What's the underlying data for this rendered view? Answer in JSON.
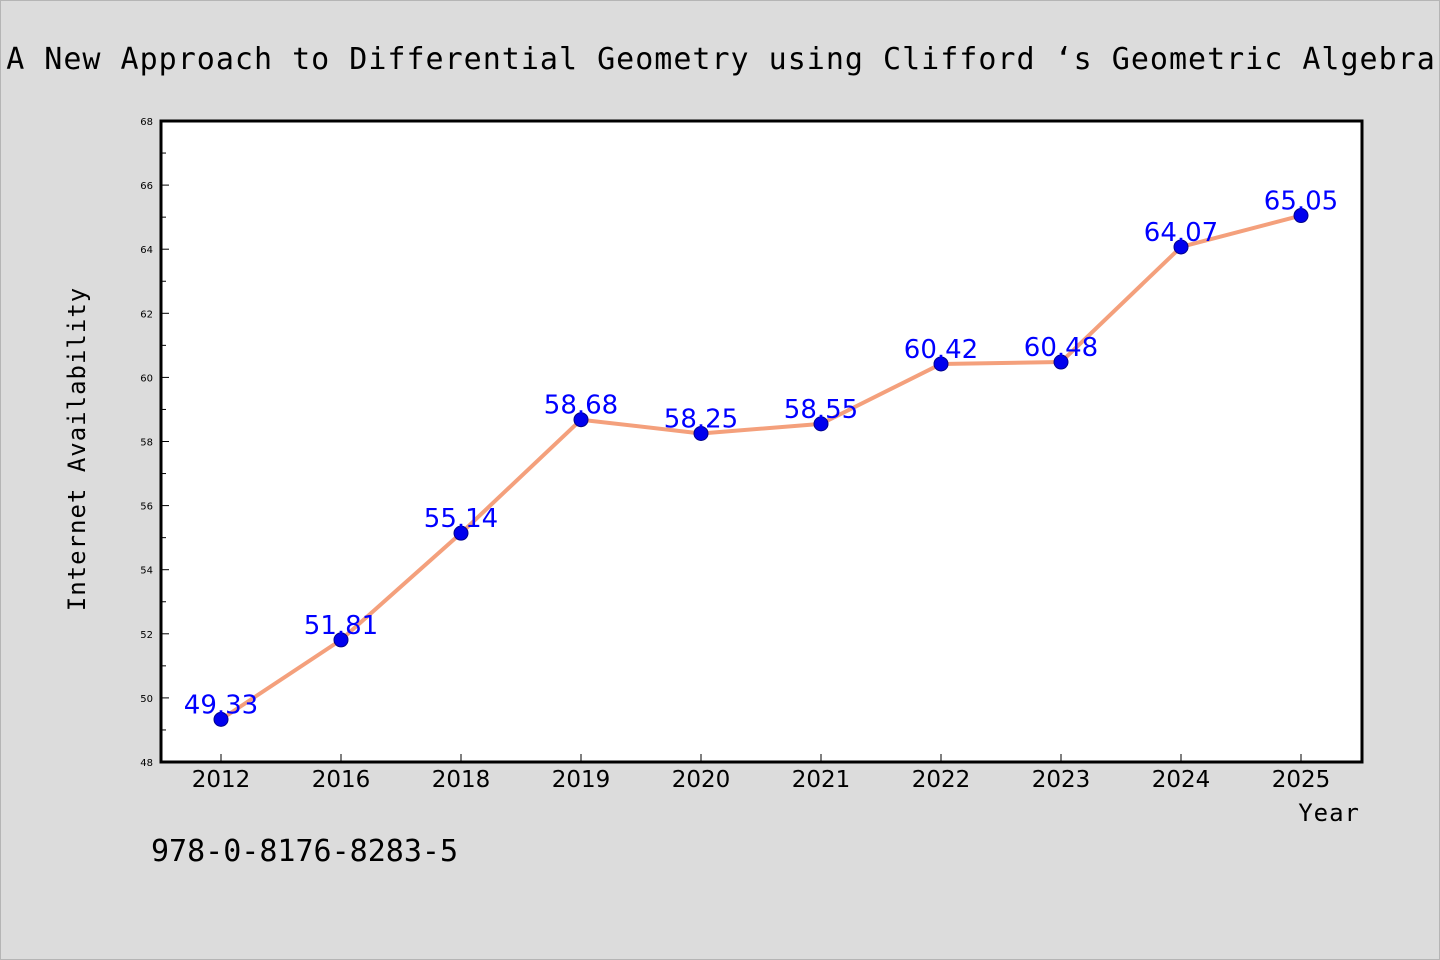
{
  "chart_data": {
    "type": "line",
    "title": "A New Approach to Differential Geometry using Clifford ‘s Geometric Algebra",
    "xlabel": "Year",
    "ylabel": "Internet Availability",
    "categories": [
      "2012",
      "2016",
      "2018",
      "2019",
      "2020",
      "2021",
      "2022",
      "2023",
      "2024",
      "2025"
    ],
    "series": [
      {
        "values": [
          49.33,
          51.81,
          55.14,
          58.68,
          58.25,
          58.55,
          60.42,
          60.48,
          64.07,
          65.05
        ],
        "labels": [
          "49.33",
          "51.81",
          "55.14",
          "58.68",
          "58.25",
          "58.55",
          "60.42",
          "60.48",
          "64.07",
          "65.05"
        ]
      }
    ],
    "ylim": [
      48,
      68
    ],
    "yticks": [
      "48",
      "50",
      "52",
      "54",
      "56",
      "58",
      "60",
      "62",
      "64",
      "66",
      "68"
    ],
    "grid": false,
    "colors": {
      "line": "#f4a07c",
      "marker": "#0000ee",
      "data_label": "#0000ff",
      "background": "#dcdcdc",
      "plot_background": "#ffffff"
    }
  },
  "footer": {
    "isbn": "978-0-8176-8283-5"
  }
}
